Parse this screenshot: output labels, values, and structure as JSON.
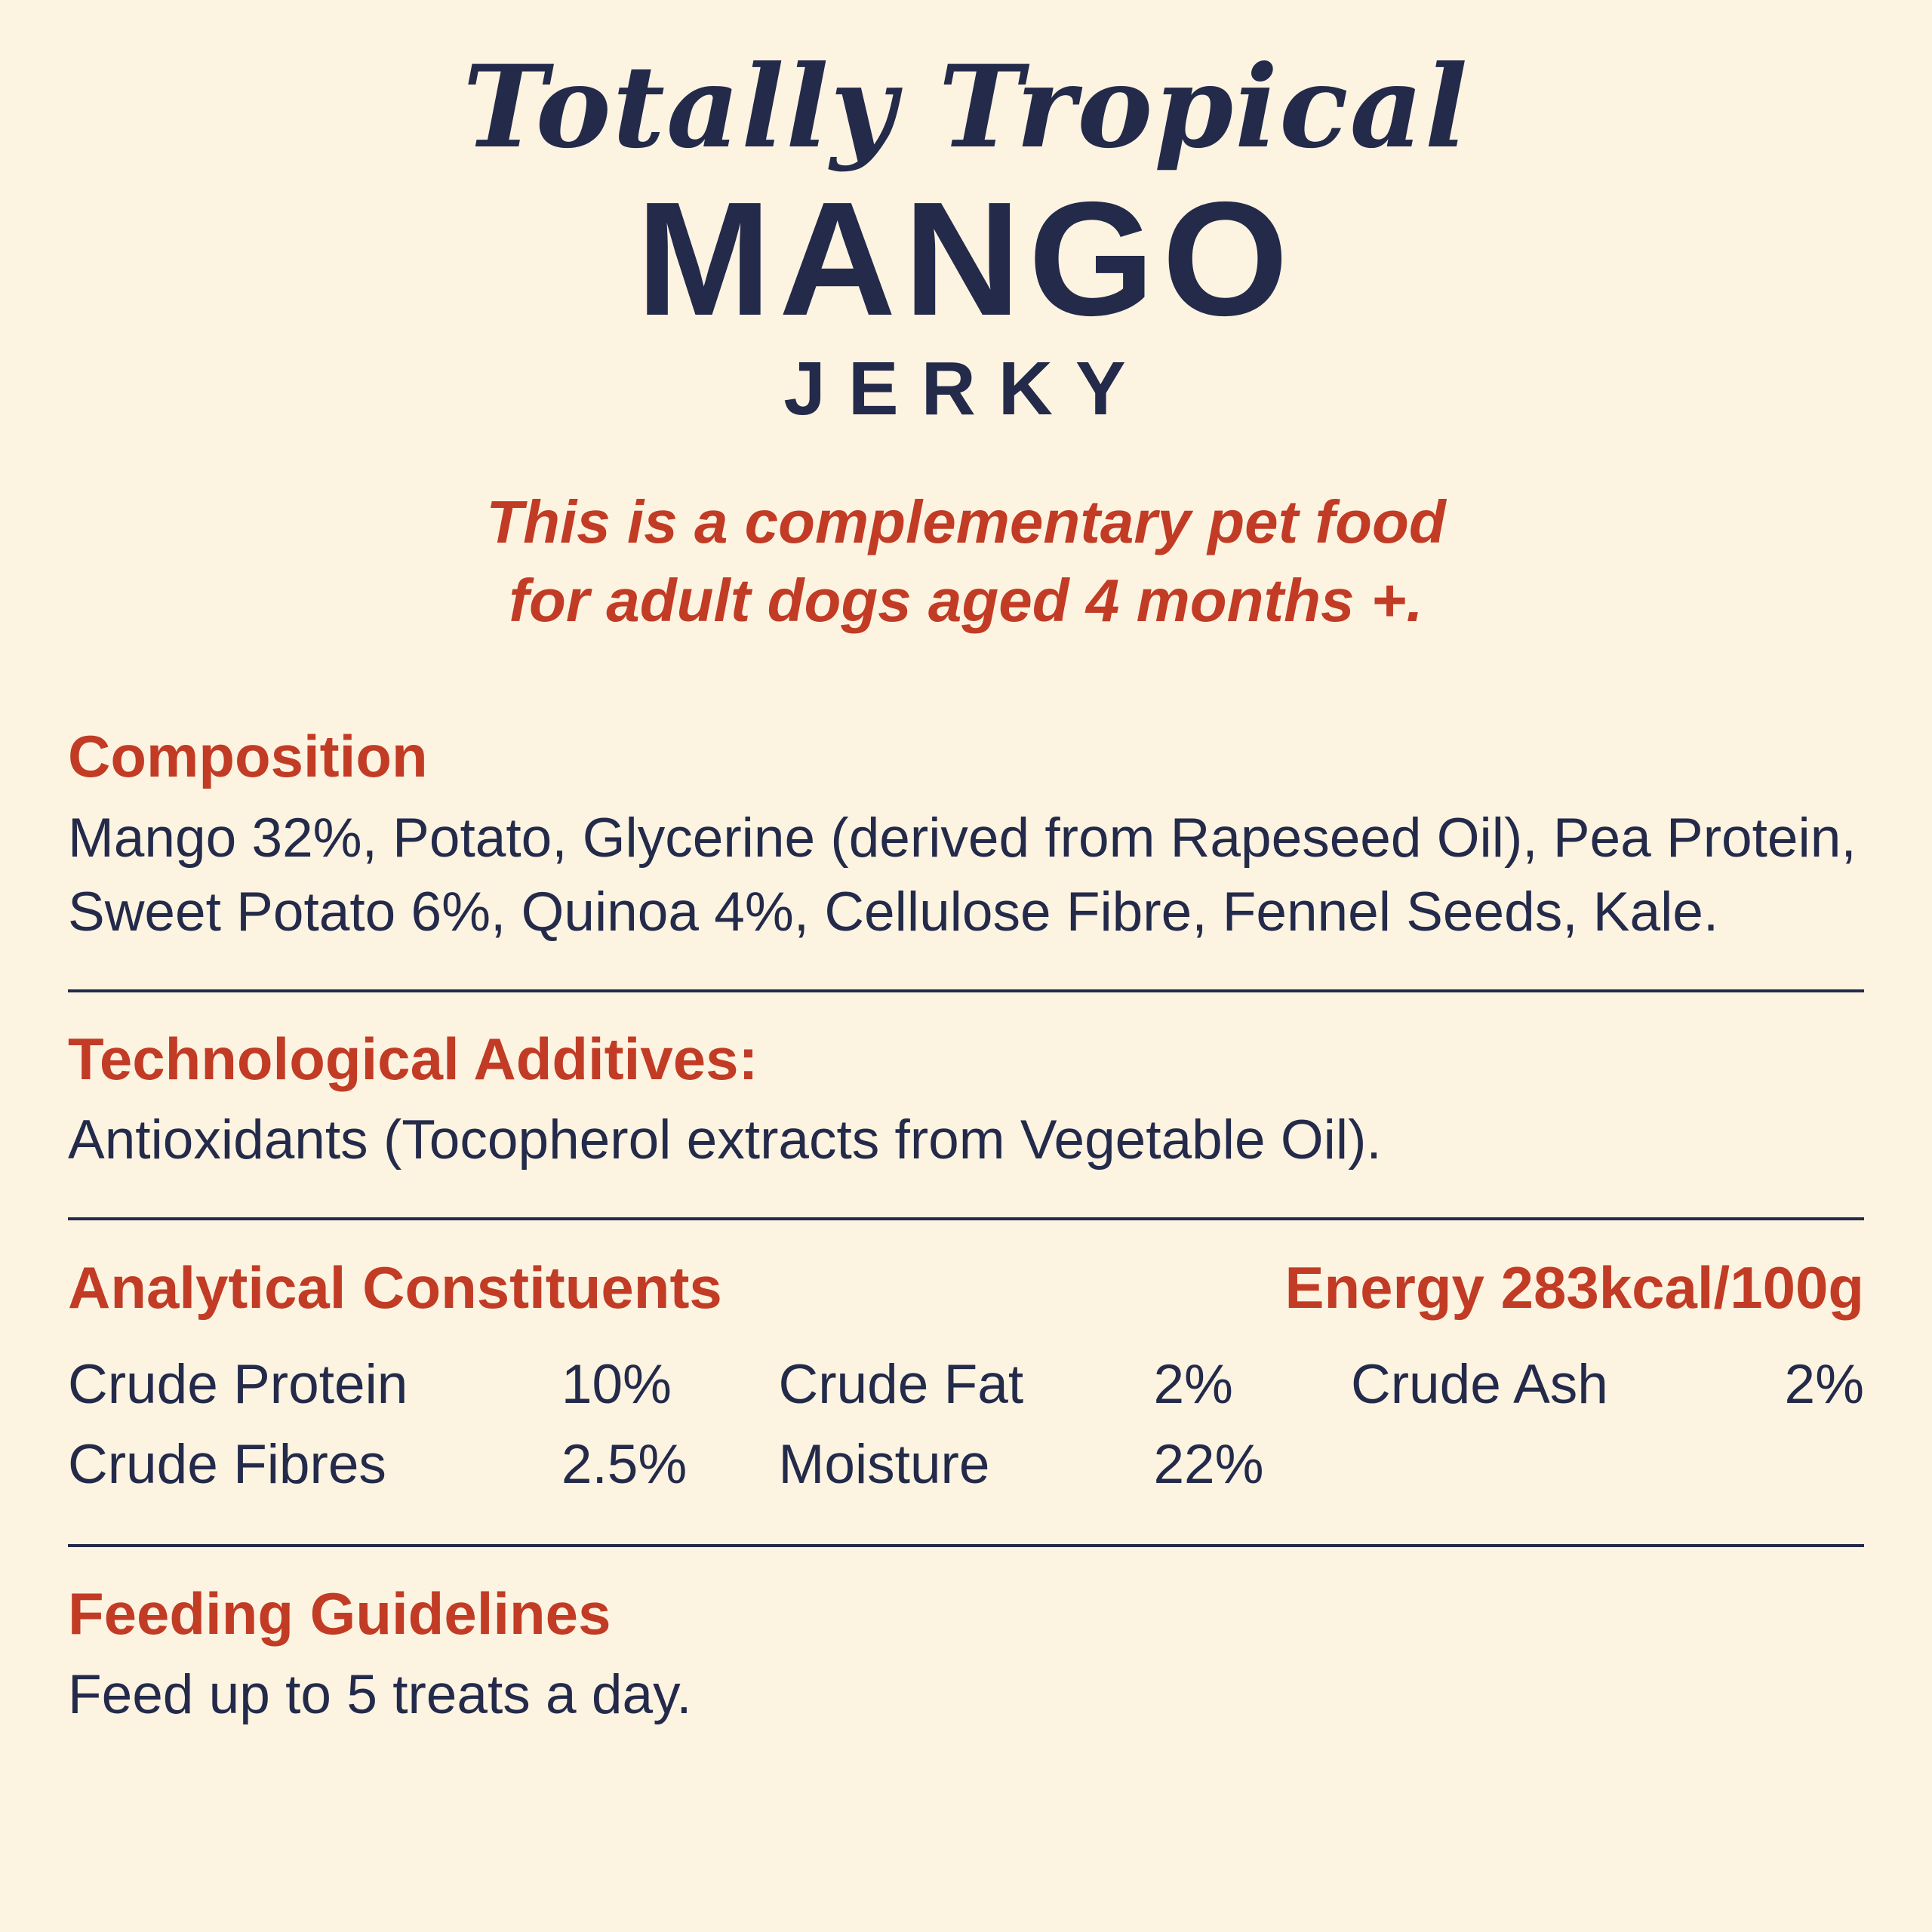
{
  "colors": {
    "background": "#fcf3e1",
    "navy": "#232a4a",
    "red": "#c13b25"
  },
  "header": {
    "script_title": "Totally Tropical",
    "product_name": "MANGO",
    "product_type": "JERKY",
    "tagline_line1": "This is a complementary pet food",
    "tagline_line2": "for adult dogs aged 4 months +."
  },
  "composition": {
    "heading": "Composition",
    "text": "Mango 32%, Potato, Glycerine (derived from Rapeseed Oil), Pea Protein, Sweet Potato 6%, Quinoa 4%, Cellulose Fibre, Fennel Seeds, Kale."
  },
  "additives": {
    "heading": "Technological Additives:",
    "text": "Antioxidants (Tocopherol extracts from Vegetable Oil)."
  },
  "analytical": {
    "heading": "Analytical Constituents",
    "energy": "Energy 283kcal/100g",
    "items": [
      {
        "label": "Crude Protein",
        "value": "10%"
      },
      {
        "label": "Crude Fat",
        "value": "2%"
      },
      {
        "label": "Crude Ash",
        "value": "2%"
      },
      {
        "label": "Crude Fibres",
        "value": "2.5%"
      },
      {
        "label": "Moisture",
        "value": "22%"
      }
    ]
  },
  "feeding": {
    "heading": "Feeding Guidelines",
    "text": "Feed up to 5 treats a day."
  }
}
